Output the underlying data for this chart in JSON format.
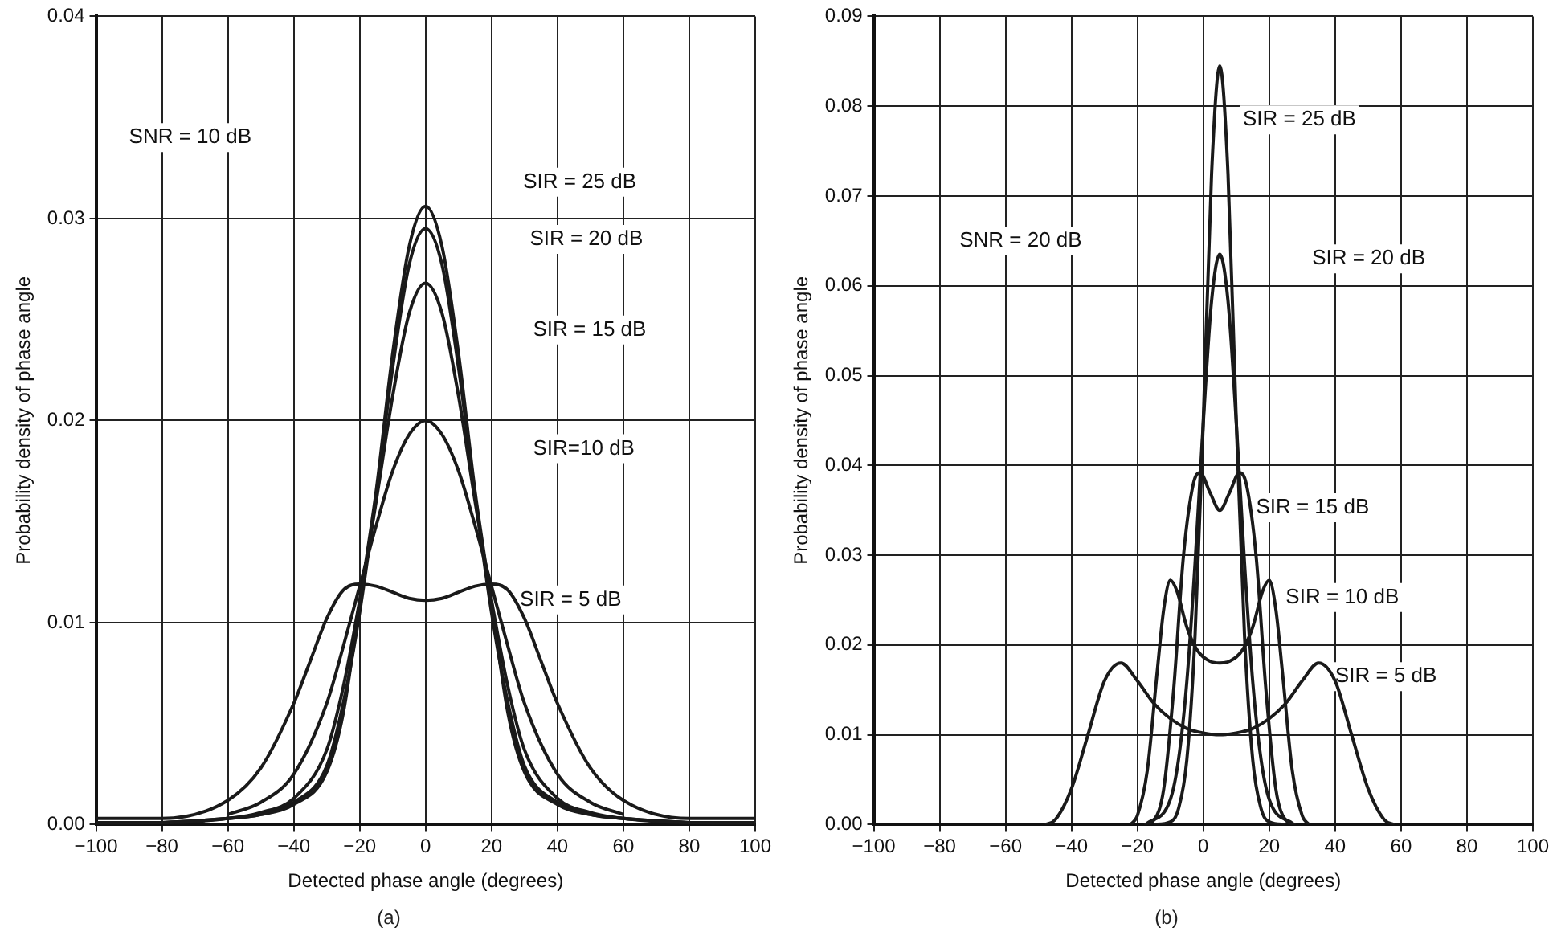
{
  "chart_data": [
    {
      "type": "line",
      "xlabel": "Detected phase angle (degrees)",
      "ylabel": "Probability density of phase angle",
      "grid": true,
      "legend": false,
      "marker": "none",
      "line_style": "solid",
      "xlim": [
        -100,
        100
      ],
      "ylim": [
        0,
        0.04
      ],
      "xticks": [
        {
          "value": -100,
          "label": "−100"
        },
        {
          "value": -80,
          "label": "−80"
        },
        {
          "value": -60,
          "label": "−60"
        },
        {
          "value": -40,
          "label": "−40"
        },
        {
          "value": -20,
          "label": "−20"
        },
        0,
        20,
        40,
        60,
        80,
        100
      ],
      "yticks": [
        {
          "value": 0,
          "label": "0.00"
        },
        0.01,
        0.02,
        0.03,
        0.04
      ],
      "series": [
        {
          "color": "#1a1a1a",
          "x": [
            -100,
            -80,
            -60,
            -50,
            -40,
            -30,
            -25,
            -20,
            -15,
            -10,
            -5,
            0,
            5,
            10,
            15,
            20,
            25,
            30,
            40,
            50,
            60,
            80,
            100
          ],
          "values": [
            0,
            0.0001,
            0.0003,
            0.0005,
            0.001,
            0.0026,
            0.0055,
            0.011,
            0.0165,
            0.0233,
            0.0286,
            0.0306,
            0.0286,
            0.0233,
            0.0165,
            0.011,
            0.0055,
            0.0026,
            0.001,
            0.0005,
            0.0003,
            0.0001,
            0
          ]
        },
        {
          "color": "#1a1a1a",
          "x": [
            -80,
            -60,
            -50,
            -40,
            -30,
            -25,
            -20,
            -15,
            -10,
            -5,
            0,
            5,
            10,
            15,
            20,
            25,
            30,
            40,
            50,
            60,
            80
          ],
          "values": [
            0.0001,
            0.0003,
            0.0005,
            0.0011,
            0.0029,
            0.006,
            0.0105,
            0.0163,
            0.0226,
            0.0277,
            0.0295,
            0.0277,
            0.0226,
            0.0163,
            0.0105,
            0.006,
            0.0029,
            0.0011,
            0.0005,
            0.0003,
            0.0001
          ]
        },
        {
          "color": "#1a1a1a",
          "x": [
            -100,
            -80,
            -60,
            -50,
            -40,
            -30,
            -25,
            -20,
            -15,
            -10,
            -5,
            0,
            5,
            10,
            15,
            20,
            25,
            30,
            40,
            50,
            60,
            80,
            100
          ],
          "values": [
            0.0001,
            0.0001,
            0.0003,
            0.0006,
            0.0013,
            0.0037,
            0.0068,
            0.0111,
            0.016,
            0.0212,
            0.0253,
            0.0268,
            0.0253,
            0.0212,
            0.016,
            0.0111,
            0.0068,
            0.0037,
            0.0013,
            0.0006,
            0.0003,
            0.0001,
            0.0001
          ]
        },
        {
          "color": "#1a1a1a",
          "x": [
            -60,
            -50,
            -40,
            -30,
            -25,
            -20,
            -15,
            -10,
            -5,
            0,
            5,
            10,
            15,
            20,
            25,
            30,
            40,
            50,
            60
          ],
          "values": [
            0.0005,
            0.0011,
            0.0025,
            0.006,
            0.0088,
            0.0118,
            0.0148,
            0.0175,
            0.0193,
            0.02,
            0.0193,
            0.0175,
            0.0148,
            0.0118,
            0.0088,
            0.006,
            0.0025,
            0.0011,
            0.0005
          ]
        },
        {
          "color": "#1a1a1a",
          "x": [
            -100,
            -80,
            -60,
            -50,
            -40,
            -35,
            -30,
            -25,
            -20,
            -15,
            -10,
            -5,
            0,
            5,
            10,
            15,
            20,
            25,
            30,
            35,
            40,
            50,
            60,
            80,
            100
          ],
          "values": [
            0.0003,
            0.0003,
            0.0012,
            0.0028,
            0.006,
            0.0081,
            0.0102,
            0.0116,
            0.0119,
            0.0118,
            0.0115,
            0.0112,
            0.0111,
            0.0112,
            0.0115,
            0.0118,
            0.0119,
            0.0116,
            0.0102,
            0.0081,
            0.006,
            0.0028,
            0.0012,
            0.0003,
            0.0003
          ]
        }
      ],
      "annotations": [
        "SNR = 10 dB",
        "SIR = 25 dB",
        "SIR = 20 dB",
        "SIR = 15 dB",
        "SIR=10 dB",
        "SIR = 5 dB",
        "(a)"
      ]
    },
    {
      "type": "line",
      "xlabel": "Detected phase angle (degrees)",
      "ylabel": "Probability density of phase angle",
      "grid": true,
      "legend": false,
      "marker": "none",
      "line_style": "solid",
      "xlim": [
        -100,
        100
      ],
      "ylim": [
        0,
        0.09
      ],
      "xticks": [
        {
          "value": -100,
          "label": "−100"
        },
        {
          "value": -80,
          "label": "−80"
        },
        {
          "value": -60,
          "label": "−60"
        },
        {
          "value": -40,
          "label": "−40"
        },
        {
          "value": -20,
          "label": "−20"
        },
        0,
        20,
        40,
        60,
        80,
        100
      ],
      "yticks": [
        {
          "value": 0,
          "label": "0.00"
        },
        0.01,
        0.02,
        0.03,
        0.04,
        0.05,
        0.06,
        0.07,
        0.08,
        0.09
      ],
      "series": [
        {
          "color": "#1a1a1a",
          "x": [
            -15,
            -10,
            -7.5,
            -5,
            -2.5,
            0,
            2.5,
            5,
            7.5,
            10,
            12.5,
            15,
            17.5,
            20,
            25
          ],
          "values": [
            0,
            0.0003,
            0.0018,
            0.0072,
            0.0211,
            0.045,
            0.0724,
            0.0845,
            0.0724,
            0.045,
            0.0211,
            0.0072,
            0.0018,
            0.0003,
            0
          ]
        },
        {
          "color": "#1a1a1a",
          "x": [
            -17.5,
            -10,
            -7.5,
            -5,
            -2.5,
            0,
            2.5,
            5,
            7.5,
            10,
            12.5,
            15,
            17.5,
            20,
            27.5
          ],
          "values": [
            0,
            0.0028,
            0.0073,
            0.0159,
            0.0291,
            0.0448,
            0.0583,
            0.0635,
            0.0583,
            0.0448,
            0.0291,
            0.0159,
            0.0073,
            0.0028,
            0
          ]
        },
        {
          "color": "#1a1a1a",
          "x": [
            -18,
            -15,
            -12,
            -9,
            -6,
            -3,
            -1,
            2,
            5,
            8,
            11,
            13,
            16,
            19,
            22,
            25,
            28
          ],
          "values": [
            0,
            0.0005,
            0.004,
            0.015,
            0.03,
            0.038,
            0.0392,
            0.037,
            0.035,
            0.037,
            0.0392,
            0.038,
            0.03,
            0.015,
            0.004,
            0.0005,
            0
          ]
        },
        {
          "color": "#1a1a1a",
          "x": [
            -22,
            -20,
            -17,
            -14,
            -12,
            -10,
            -8,
            -5,
            -2,
            2,
            5,
            8,
            12,
            15,
            18,
            20,
            22,
            24,
            27,
            30,
            32
          ],
          "values": [
            0,
            0.001,
            0.006,
            0.017,
            0.024,
            0.0272,
            0.026,
            0.022,
            0.0195,
            0.0182,
            0.018,
            0.0182,
            0.0195,
            0.022,
            0.026,
            0.0272,
            0.024,
            0.017,
            0.006,
            0.001,
            0
          ]
        },
        {
          "color": "#1a1a1a",
          "x": [
            -48,
            -45,
            -40,
            -35,
            -30,
            -25,
            -20,
            -15,
            -10,
            -5,
            0,
            5,
            10,
            15,
            20,
            25,
            30,
            35,
            40,
            45,
            50,
            55,
            58
          ],
          "values": [
            0,
            0.0005,
            0.004,
            0.01,
            0.016,
            0.018,
            0.016,
            0.0135,
            0.0118,
            0.0107,
            0.0102,
            0.01,
            0.0102,
            0.0107,
            0.0118,
            0.0135,
            0.016,
            0.018,
            0.016,
            0.01,
            0.004,
            0.0005,
            0
          ]
        }
      ],
      "annotations": [
        "SNR = 20 dB",
        "SIR = 25 dB",
        "SIR = 20 dB",
        "SIR = 15 dB",
        "SIR = 10 dB",
        "SIR = 5 dB",
        "(b)"
      ]
    }
  ]
}
